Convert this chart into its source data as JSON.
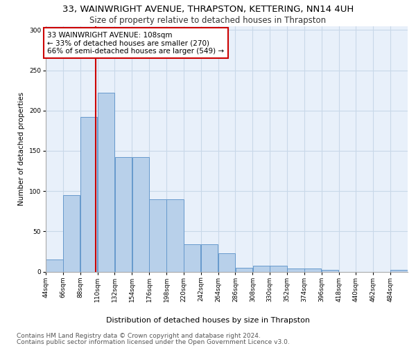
{
  "title1": "33, WAINWRIGHT AVENUE, THRAPSTON, KETTERING, NN14 4UH",
  "title2": "Size of property relative to detached houses in Thrapston",
  "xlabel": "Distribution of detached houses by size in Thrapston",
  "ylabel": "Number of detached properties",
  "footer1": "Contains HM Land Registry data © Crown copyright and database right 2024.",
  "footer2": "Contains public sector information licensed under the Open Government Licence v3.0.",
  "property_label": "33 WAINWRIGHT AVENUE: 108sqm",
  "annotation_line1": "← 33% of detached houses are smaller (270)",
  "annotation_line2": "66% of semi-detached houses are larger (549) →",
  "bin_labels": [
    "44sqm",
    "66sqm",
    "88sqm",
    "110sqm",
    "132sqm",
    "154sqm",
    "176sqm",
    "198sqm",
    "220sqm",
    "242sqm",
    "264sqm",
    "286sqm",
    "308sqm",
    "330sqm",
    "352sqm",
    "374sqm",
    "396sqm",
    "418sqm",
    "440sqm",
    "462sqm",
    "484sqm"
  ],
  "bin_starts": [
    44,
    66,
    88,
    110,
    132,
    154,
    176,
    198,
    220,
    242,
    264,
    286,
    308,
    330,
    352,
    374,
    396,
    418,
    440,
    462,
    484
  ],
  "bin_width": 22,
  "bar_values": [
    15,
    95,
    192,
    222,
    142,
    142,
    90,
    90,
    34,
    34,
    23,
    5,
    7,
    7,
    4,
    4,
    2,
    0,
    0,
    0,
    2
  ],
  "bar_facecolor": "#b8d0ea",
  "bar_edgecolor": "#6699cc",
  "vline_x": 108,
  "vline_color": "#cc0000",
  "vline_linewidth": 1.5,
  "annotation_box_edgecolor": "#cc0000",
  "annotation_box_facecolor": "#ffffff",
  "ylim": [
    0,
    305
  ],
  "yticks": [
    0,
    50,
    100,
    150,
    200,
    250,
    300
  ],
  "grid_color": "#c8d8e8",
  "bg_color": "#e8f0fa",
  "title1_fontsize": 9.5,
  "title2_fontsize": 8.5,
  "xlabel_fontsize": 8,
  "ylabel_fontsize": 7.5,
  "tick_fontsize": 6.5,
  "footer_fontsize": 6.5,
  "annotation_fontsize": 7.5
}
